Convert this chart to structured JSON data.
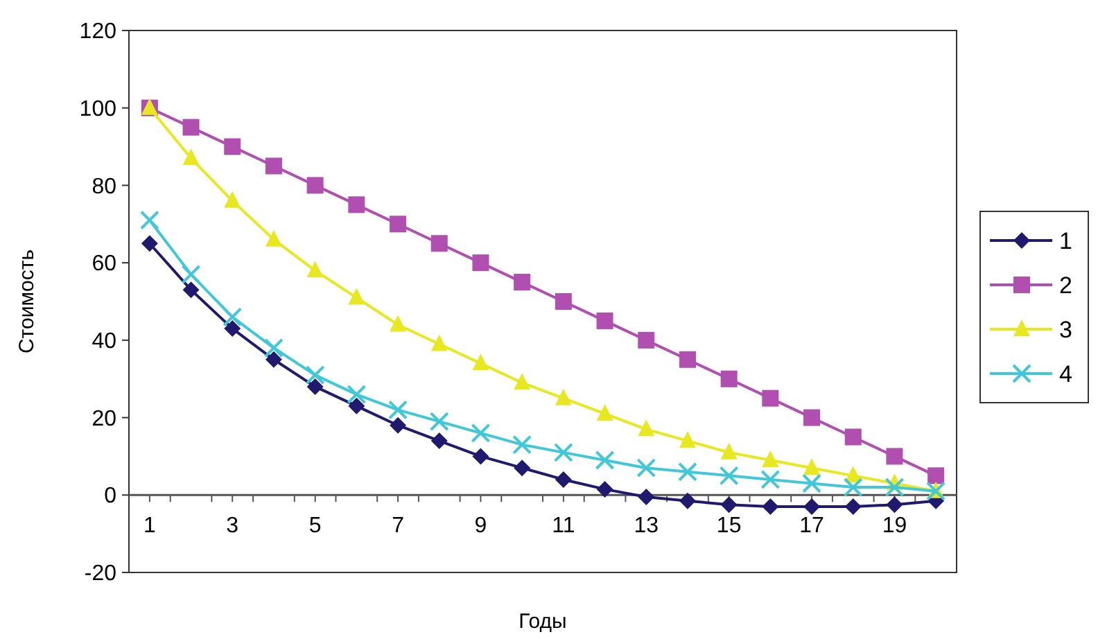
{
  "chart_data": {
    "type": "line",
    "xlabel": "Годы",
    "ylabel": "Стоимость",
    "x": [
      1,
      2,
      3,
      4,
      5,
      6,
      7,
      8,
      9,
      10,
      11,
      12,
      13,
      14,
      15,
      16,
      17,
      18,
      19,
      20
    ],
    "xlim": [
      0.5,
      20.5
    ],
    "xticks": [
      1,
      {
        "value": 1.5,
        "label": null
      },
      {
        "value": 2.5,
        "label": null
      },
      3,
      {
        "value": 3.5,
        "label": null
      },
      {
        "value": 4.5,
        "label": null
      },
      5,
      {
        "value": 5.5,
        "label": null
      },
      {
        "value": 6.5,
        "label": null
      },
      7,
      {
        "value": 7.5,
        "label": null
      },
      {
        "value": 8.5,
        "label": null
      },
      9,
      {
        "value": 9.5,
        "label": null
      },
      {
        "value": 10.5,
        "label": null
      },
      11,
      {
        "value": 11.5,
        "label": null
      },
      {
        "value": 12.5,
        "label": null
      },
      13,
      {
        "value": 13.5,
        "label": null
      },
      {
        "value": 14.5,
        "label": null
      },
      15,
      {
        "value": 15.5,
        "label": null
      },
      {
        "value": 16.5,
        "label": null
      },
      17,
      {
        "value": 17.5,
        "label": null
      },
      {
        "value": 18.5,
        "label": null
      },
      19,
      {
        "value": 19.5,
        "label": null
      }
    ],
    "ylim": [
      -20,
      120
    ],
    "yticks": [
      -20,
      0,
      20,
      40,
      60,
      80,
      100,
      120
    ],
    "grid": false,
    "legend": "right",
    "series": [
      {
        "name": "1",
        "color": "#1f1a6e",
        "marker": "diamond",
        "values": [
          65,
          53,
          43,
          35,
          28,
          23,
          18,
          14,
          10,
          7,
          4,
          1.5,
          -0.5,
          -1.5,
          -2.5,
          -3,
          -3,
          -3,
          -2.5,
          -1.5
        ]
      },
      {
        "name": "2",
        "color": "#b04fb0",
        "marker": "square",
        "values": [
          100,
          95,
          90,
          85,
          80,
          75,
          70,
          65,
          60,
          55,
          50,
          45,
          40,
          35,
          30,
          25,
          20,
          15,
          10,
          5
        ]
      },
      {
        "name": "3",
        "color": "#e8e820",
        "marker": "triangle",
        "values": [
          100,
          87,
          76,
          66,
          58,
          51,
          44,
          39,
          34,
          29,
          25,
          21,
          17,
          14,
          11,
          9,
          7,
          5,
          3,
          1
        ]
      },
      {
        "name": "4",
        "color": "#40c8d8",
        "marker": "cross",
        "values": [
          71,
          57,
          46,
          38,
          31,
          26,
          22,
          19,
          16,
          13,
          11,
          9,
          7,
          6,
          5,
          4,
          3,
          2,
          2,
          1
        ]
      }
    ]
  }
}
